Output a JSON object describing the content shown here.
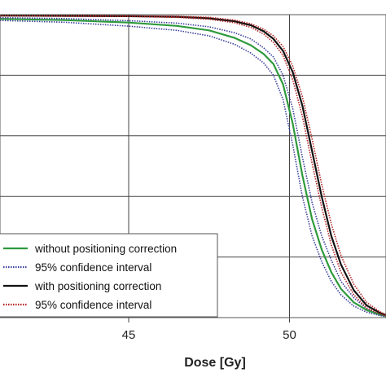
{
  "chart_data": {
    "type": "line",
    "title": "",
    "xlabel": "Dose [Gy]",
    "ylabel": "",
    "xlim": [
      41,
      53
    ],
    "xticks": [
      45,
      50
    ],
    "xtick_labels": [
      "45",
      "50"
    ],
    "grid": true,
    "legend_position": "bottom-left",
    "series": [
      {
        "name": "without positioning correction",
        "color": "#2e9a3c",
        "style": "solid",
        "x": [
          41,
          43,
          45,
          46.5,
          47.5,
          48.3,
          48.8,
          49.2,
          49.5,
          49.8,
          50.1,
          50.4,
          50.7,
          51.0,
          51.3,
          51.6,
          52.0,
          52.4,
          52.8,
          53.0
        ],
        "y": [
          98.6,
          98.2,
          97.4,
          96.3,
          94.8,
          92.3,
          89.9,
          87.0,
          83.7,
          77.0,
          64.0,
          47.0,
          32.5,
          22.5,
          15.0,
          9.5,
          5.0,
          2.5,
          1.0,
          0.5
        ]
      },
      {
        "name": "95% confidence interval",
        "color": "#3a3f9a",
        "style": "dotted",
        "x": [
          41,
          43,
          45,
          46.5,
          47.5,
          48.3,
          48.8,
          49.2,
          49.5,
          49.8,
          50.1,
          50.4,
          50.7,
          51.0,
          51.3,
          51.6,
          52.0,
          52.4,
          52.8,
          53.0
        ],
        "y": [
          99.0,
          98.7,
          98.0,
          97.2,
          96.0,
          94.0,
          92.0,
          89.0,
          86.0,
          80.0,
          69.0,
          53.0,
          38.0,
          27.0,
          19.0,
          12.0,
          6.5,
          3.0,
          1.3,
          0.7
        ]
      },
      {
        "name": "95% confidence interval (lower)",
        "color": "#3a3f9a",
        "style": "dotted",
        "x": [
          41,
          43,
          45,
          46.5,
          47.5,
          48.3,
          48.8,
          49.2,
          49.5,
          49.8,
          50.1,
          50.4,
          50.7,
          51.0,
          51.3,
          51.6,
          52.0,
          52.4,
          52.8,
          53.0
        ],
        "y": [
          98.1,
          97.5,
          96.2,
          94.8,
          93.0,
          90.2,
          87.3,
          84.0,
          80.0,
          72.0,
          57.0,
          40.0,
          27.0,
          18.5,
          12.0,
          7.5,
          3.8,
          1.8,
          0.7,
          0.3
        ]
      },
      {
        "name": "with positioning correction",
        "color": "#111111",
        "style": "solid",
        "x": [
          41,
          43,
          45,
          46.5,
          47.5,
          48.3,
          48.8,
          49.2,
          49.5,
          49.8,
          50.1,
          50.4,
          50.7,
          51.0,
          51.3,
          51.6,
          52.0,
          52.4,
          52.8,
          53.0
        ],
        "y": [
          99.7,
          99.6,
          99.5,
          99.3,
          98.8,
          97.8,
          96.5,
          94.5,
          92.0,
          88.0,
          81.0,
          70.0,
          55.0,
          40.0,
          27.0,
          17.5,
          9.0,
          4.0,
          1.6,
          0.8
        ]
      },
      {
        "name": "95% confidence interval",
        "color": "#b22222",
        "style": "dotted",
        "x": [
          41,
          43,
          45,
          46.5,
          47.5,
          48.3,
          48.8,
          49.2,
          49.5,
          49.8,
          50.1,
          50.4,
          50.7,
          51.0,
          51.3,
          51.6,
          52.0,
          52.4,
          52.8,
          53.0
        ],
        "y": [
          99.8,
          99.7,
          99.6,
          99.5,
          99.1,
          98.2,
          97.0,
          95.2,
          93.0,
          89.5,
          83.0,
          73.0,
          59.0,
          44.0,
          31.0,
          20.5,
          11.0,
          5.0,
          2.0,
          1.0
        ]
      },
      {
        "name": "95% confidence interval (lower)",
        "color": "#b22222",
        "style": "dotted",
        "x": [
          41,
          43,
          45,
          46.5,
          47.5,
          48.3,
          48.8,
          49.2,
          49.5,
          49.8,
          50.1,
          50.4,
          50.7,
          51.0,
          51.3,
          51.6,
          52.0,
          52.4,
          52.8,
          53.0
        ],
        "y": [
          99.6,
          99.5,
          99.4,
          99.1,
          98.5,
          97.3,
          95.8,
          93.6,
          90.8,
          86.5,
          78.5,
          66.5,
          51.0,
          36.5,
          24.0,
          15.0,
          7.5,
          3.2,
          1.3,
          0.6
        ]
      }
    ],
    "legend": [
      {
        "label": "without positioning correction",
        "color": "#2e9a3c",
        "style": "solid"
      },
      {
        "label": "95% confidence interval",
        "color": "#3a3f9a",
        "style": "dotted"
      },
      {
        "label": "with positioning correction",
        "color": "#111111",
        "style": "solid"
      },
      {
        "label": "95% confidence interval",
        "color": "#b22222",
        "style": "dotted"
      }
    ]
  }
}
